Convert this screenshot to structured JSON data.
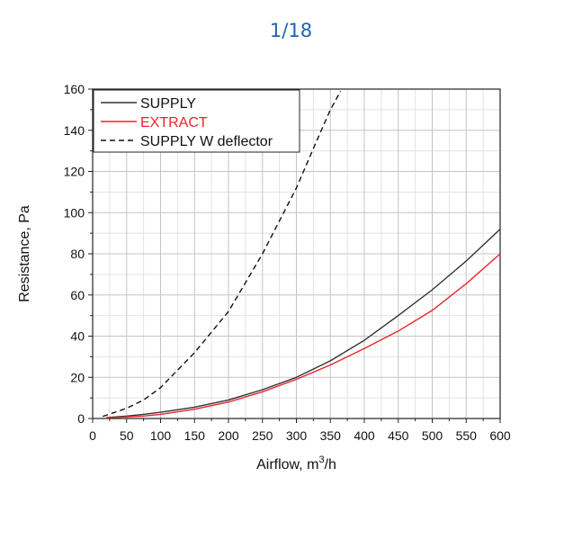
{
  "pager": {
    "text": "1/18"
  },
  "chart_data": {
    "type": "line",
    "xlabel_main": "Airflow, m",
    "xlabel_sup": "3",
    "xlabel_tail": "/h",
    "ylabel": "Resistance, Pa",
    "xlim": [
      0,
      600
    ],
    "ylim": [
      0,
      160
    ],
    "x_ticks": [
      0,
      50,
      100,
      150,
      200,
      250,
      300,
      350,
      400,
      450,
      500,
      550,
      600
    ],
    "y_ticks": [
      0,
      20,
      40,
      60,
      80,
      100,
      120,
      140,
      160
    ],
    "grid": true,
    "legend_position": "top-left",
    "series": [
      {
        "name": "SUPPLY",
        "color": "#333333",
        "dash": "solid",
        "x": [
          20,
          50,
          75,
          100,
          150,
          200,
          250,
          300,
          350,
          400,
          450,
          500,
          550,
          600
        ],
        "y": [
          0.5,
          1.2,
          2.0,
          3.0,
          5.5,
          9.0,
          14.0,
          20.0,
          28.0,
          38.0,
          50.0,
          62.5,
          76.5,
          92.0
        ]
      },
      {
        "name": "EXTRACT",
        "color": "#e8262a",
        "dash": "solid",
        "x": [
          20,
          50,
          75,
          100,
          150,
          200,
          250,
          300,
          350,
          400,
          450,
          500,
          550,
          600
        ],
        "y": [
          0.3,
          0.8,
          1.2,
          2.0,
          4.5,
          8.0,
          13.0,
          19.0,
          26.0,
          34.0,
          42.5,
          52.5,
          65.5,
          80.0
        ]
      },
      {
        "name": "SUPPLY W deflector",
        "color": "#111111",
        "dash": "dashed",
        "x": [
          15,
          50,
          75,
          100,
          150,
          200,
          250,
          300,
          330,
          350,
          365
        ],
        "y": [
          1.0,
          5.0,
          9.0,
          15.0,
          32.0,
          52.0,
          80.0,
          112.0,
          135.0,
          150.0,
          159.0
        ]
      }
    ]
  }
}
